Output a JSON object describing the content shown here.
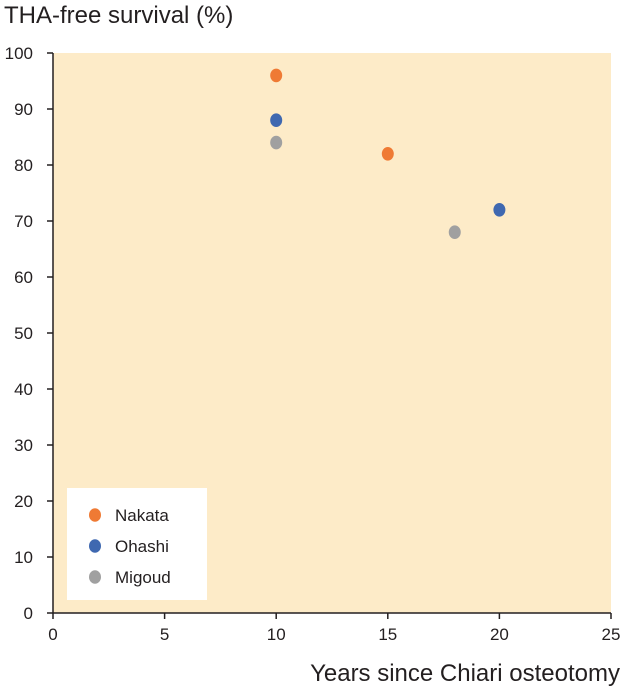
{
  "chart_data": {
    "type": "scatter",
    "title": "THA-free survival (%)",
    "xlabel": "Years since Chiari osteotomy",
    "ylabel": "",
    "xlim": [
      0,
      25
    ],
    "ylim": [
      0,
      100
    ],
    "x_ticks": [
      0,
      5,
      10,
      15,
      20,
      25
    ],
    "y_ticks": [
      0,
      10,
      20,
      30,
      40,
      50,
      60,
      70,
      80,
      90,
      100
    ],
    "grid": false,
    "background_color": "#fdebc8",
    "legend_position": "bottom-left",
    "series": [
      {
        "name": "Nakata",
        "color": "#ef7a34",
        "points": [
          {
            "x": 10,
            "y": 96
          },
          {
            "x": 15,
            "y": 82
          }
        ]
      },
      {
        "name": "Ohashi",
        "color": "#3f68b0",
        "points": [
          {
            "x": 10,
            "y": 88
          },
          {
            "x": 20,
            "y": 72
          }
        ]
      },
      {
        "name": "Migoud",
        "color": "#a0a0a0",
        "points": [
          {
            "x": 10,
            "y": 84
          },
          {
            "x": 18,
            "y": 68
          }
        ]
      }
    ]
  }
}
